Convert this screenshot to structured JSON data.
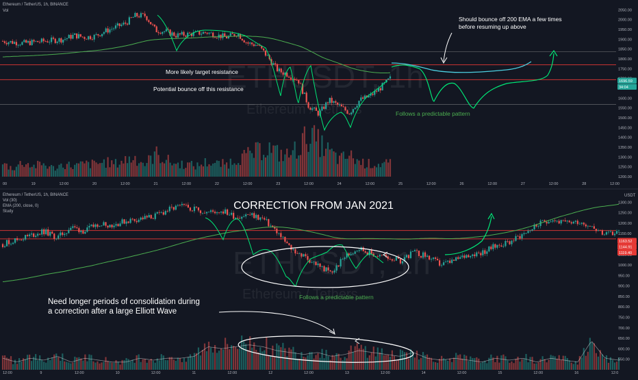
{
  "colors": {
    "background": "#131722",
    "up_candle": "#26a69a",
    "down_candle": "#ef5350",
    "ema_line": "#4caf50",
    "resistance_line": "#e53935",
    "support_line": "#9e9e9e",
    "projection_green": "#00e676",
    "projection_cyan": "#4dd0e1",
    "annotation_white": "#ffffff",
    "axis_text": "#b2b5be",
    "price_tag_green": "#26a69a",
    "price_tag_red": "#e53935"
  },
  "chart_data": [
    {
      "type": "candlestick",
      "symbol_title": "Ethereum / TetherUS, 1h, BINANCE",
      "indicators": [
        "Vol"
      ],
      "watermark": "ETHUSDT, 1h",
      "watermark_sub": "Ethereum / Tethers",
      "ylim": [
        1200,
        2100
      ],
      "y_ticks": [
        "2050.00",
        "2000.00",
        "1950.00",
        "1900.00",
        "1850.00",
        "1800.00",
        "1750.00",
        "1700.00",
        "1650.00",
        "1600.00",
        "1550.00",
        "1500.00",
        "1450.00",
        "1400.00",
        "1350.00",
        "1300.00",
        "1250.00",
        "1200.00"
      ],
      "x_ticks": [
        "00",
        "19",
        "12:00",
        "20",
        "12:00",
        "21",
        "12:00",
        "22",
        "12:00",
        "23",
        "12:00",
        "24",
        "12:00",
        "25",
        "12:00",
        "26",
        "12:00",
        "27",
        "12:00",
        "28",
        "12:00"
      ],
      "price_tags": [
        {
          "label": "1696.59",
          "color": "green"
        },
        {
          "label": "34:04",
          "color": "green"
        }
      ],
      "annotations": [
        "More likely target resistance",
        "Potential bounce off this resistance",
        "Follows a predictable pattern",
        "Should bounce off 200 EMA a few times",
        "before resuming up above"
      ],
      "levels": [
        {
          "name": "upper-support",
          "price": 1836
        },
        {
          "name": "target-resistance",
          "price": 1770
        },
        {
          "name": "bounce-resistance",
          "price": 1694
        },
        {
          "name": "lower-support",
          "price": 1568
        }
      ],
      "price_path": {
        "x_index": [
          0,
          15,
          30,
          45,
          60,
          75,
          90,
          105,
          120,
          135,
          150,
          165,
          180,
          195,
          210,
          225,
          240,
          255,
          270,
          285,
          300,
          315,
          330,
          345,
          360,
          375,
          390,
          405,
          420,
          435,
          450,
          465,
          480,
          495,
          510,
          525,
          540,
          555,
          570
        ],
        "close": [
          1890,
          1885,
          1880,
          1885,
          1890,
          1895,
          1900,
          1920,
          1910,
          1915,
          1940,
          1960,
          1980,
          2020,
          2020,
          1945,
          1940,
          1920,
          1925,
          1930,
          1935,
          1920,
          1910,
          1930,
          1880,
          1870,
          1810,
          1740,
          1720,
          1690,
          1560,
          1520,
          1590,
          1560,
          1525,
          1590,
          1610,
          1650,
          1700
        ]
      },
      "volume_relative": [
        0.3,
        0.2,
        0.35,
        0.25,
        0.3,
        0.2,
        0.3,
        0.25,
        0.3,
        0.3,
        0.35,
        0.3,
        0.4,
        0.45,
        0.3,
        0.55,
        0.4,
        0.3,
        0.3,
        0.25,
        0.35,
        0.3,
        0.3,
        0.45,
        0.5,
        0.6,
        0.7,
        0.55,
        0.5,
        0.7,
        1.0,
        0.8,
        0.6,
        0.4,
        0.5,
        0.35,
        0.3,
        0.3,
        0.3
      ]
    },
    {
      "type": "candlestick",
      "symbol_title": "Ethereum / TetherUS, 1h, BINANCE",
      "indicators": [
        "Vol (30)",
        "EMA (200, close, 0)",
        "Study"
      ],
      "title": "CORRECTION FROM JAN 2021",
      "watermark": "ETHUSDT, 1h",
      "watermark_sub": "Ethereum / Tethers",
      "currency": "USDT",
      "ylim": [
        500,
        1350
      ],
      "y_ticks": [
        "1300.00",
        "1250.00",
        "1200.00",
        "1150.00",
        "1100.00",
        "1050.00",
        "1000.00",
        "950.00",
        "900.00",
        "850.00",
        "800.00",
        "750.00",
        "700.00",
        "650.00",
        "600.00",
        "550.00"
      ],
      "x_ticks": [
        "12:00",
        "9",
        "12:00",
        "10",
        "12:00",
        "11",
        "12:00",
        "12",
        "12:00",
        "13",
        "12:00",
        "14",
        "12:00",
        "15",
        "12:00",
        "16",
        "12:0"
      ],
      "price_tags": [
        {
          "label": "1163.52",
          "color": "red"
        },
        {
          "label": "1144.91",
          "color": "red"
        },
        {
          "label": "1119.40",
          "color": "red"
        }
      ],
      "annotations": [
        "Need longer periods of consolidation during",
        "a correction after a large Elliott Wave",
        "Follows a predictable pattern"
      ],
      "levels": [
        {
          "name": "upper-resistance",
          "price": 1165
        },
        {
          "name": "lower-resistance",
          "price": 1125
        }
      ],
      "price_path": {
        "x_index": [
          0,
          20,
          40,
          60,
          80,
          100,
          120,
          140,
          160,
          180,
          200,
          220,
          240,
          260,
          280,
          300,
          320,
          340,
          360,
          380,
          400,
          420,
          440,
          460,
          480,
          500,
          520,
          540,
          560,
          580,
          600,
          620,
          640,
          660,
          680,
          700,
          720,
          740,
          760,
          780,
          800,
          820,
          840,
          860,
          880,
          900
        ],
        "close": [
          1100,
          1120,
          1140,
          1160,
          1130,
          1180,
          1160,
          1200,
          1190,
          1210,
          1220,
          1230,
          1260,
          1280,
          1270,
          1250,
          1260,
          1230,
          1240,
          1220,
          1160,
          1080,
          1040,
          1000,
          960,
          1040,
          1080,
          1050,
          1040,
          1020,
          1060,
          1040,
          1000,
          1020,
          1050,
          1060,
          1090,
          1110,
          1150,
          1190,
          1220,
          1200,
          1210,
          1190,
          1140,
          1160
        ]
      },
      "volume_relative": [
        0.3,
        0.2,
        0.3,
        0.25,
        0.35,
        0.2,
        0.3,
        0.25,
        0.2,
        0.2,
        0.3,
        0.25,
        0.3,
        0.3,
        0.35,
        0.6,
        0.55,
        0.6,
        0.65,
        0.6,
        0.5,
        0.45,
        0.4,
        0.45,
        0.35,
        0.4,
        0.5,
        0.45,
        0.4,
        0.35,
        0.45,
        0.3,
        0.25,
        0.3,
        0.25,
        0.2,
        0.3,
        0.25,
        0.3,
        0.2,
        0.3,
        0.25,
        0.2,
        0.75,
        0.3,
        0.25
      ]
    }
  ]
}
